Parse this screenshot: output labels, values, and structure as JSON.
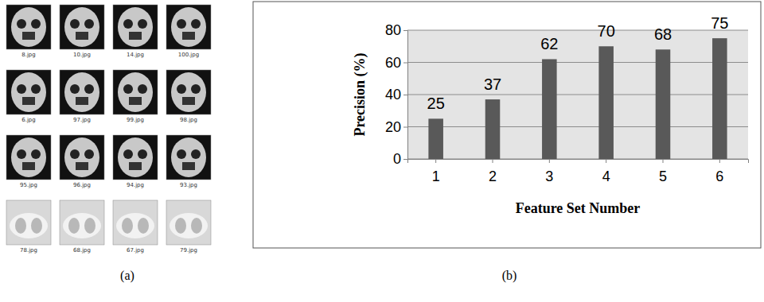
{
  "chart_data": {
    "type": "bar",
    "categories": [
      "1",
      "2",
      "3",
      "4",
      "5",
      "6"
    ],
    "values": [
      25,
      37,
      62,
      70,
      68,
      75
    ],
    "color": "#595959",
    "x_label": "Feature Set Number",
    "y_label": "Precision (%)",
    "ylim": [
      0,
      80
    ],
    "yticks": [
      0,
      20,
      40,
      60,
      80
    ],
    "grid": true,
    "data_labels": true
  },
  "image_grid": {
    "label": "(a)",
    "captions": [
      "8.jpg",
      "10.jpg",
      "14.jpg",
      "100.jpg",
      "6.jpg",
      "97.jpg",
      "99.jpg",
      "98.jpg",
      "95.jpg",
      "96.jpg",
      "94.jpg",
      "93.jpg",
      "78.jpg",
      "68.jpg",
      "67.jpg",
      "79.jpg"
    ]
  },
  "chart_panel": {
    "label": "(b)"
  }
}
